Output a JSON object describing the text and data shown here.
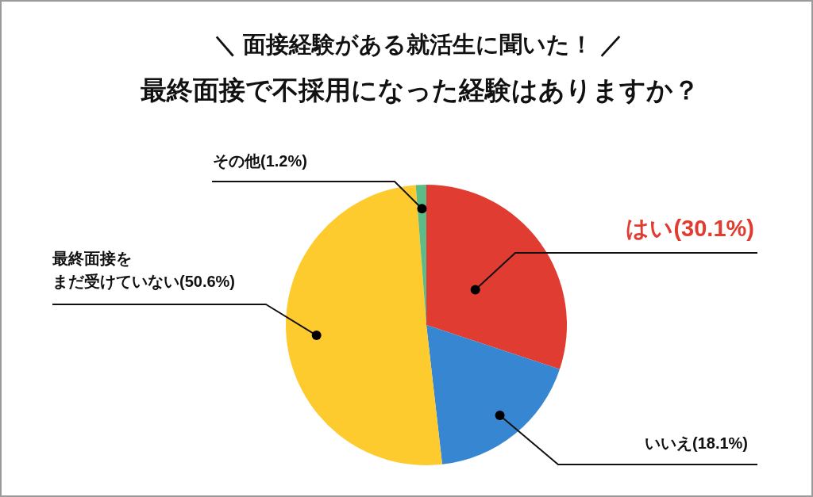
{
  "chart_data": {
    "type": "pie",
    "title": "最終面接で不採用になった経験はありますか？",
    "subtitle": "＼ 面接経験がある就活生に聞いた！ ／",
    "categories": [
      "はい",
      "いいえ",
      "最終面接をまだ受けていない",
      "その他"
    ],
    "values": [
      30.1,
      18.1,
      50.6,
      1.2
    ],
    "colors": [
      "#e03c31",
      "#3786d1",
      "#fecb2f",
      "#5cbb87"
    ],
    "value_labels": [
      "(30.1%)",
      "(18.1%)",
      "(50.6%)",
      "(1.2%)"
    ]
  }
}
